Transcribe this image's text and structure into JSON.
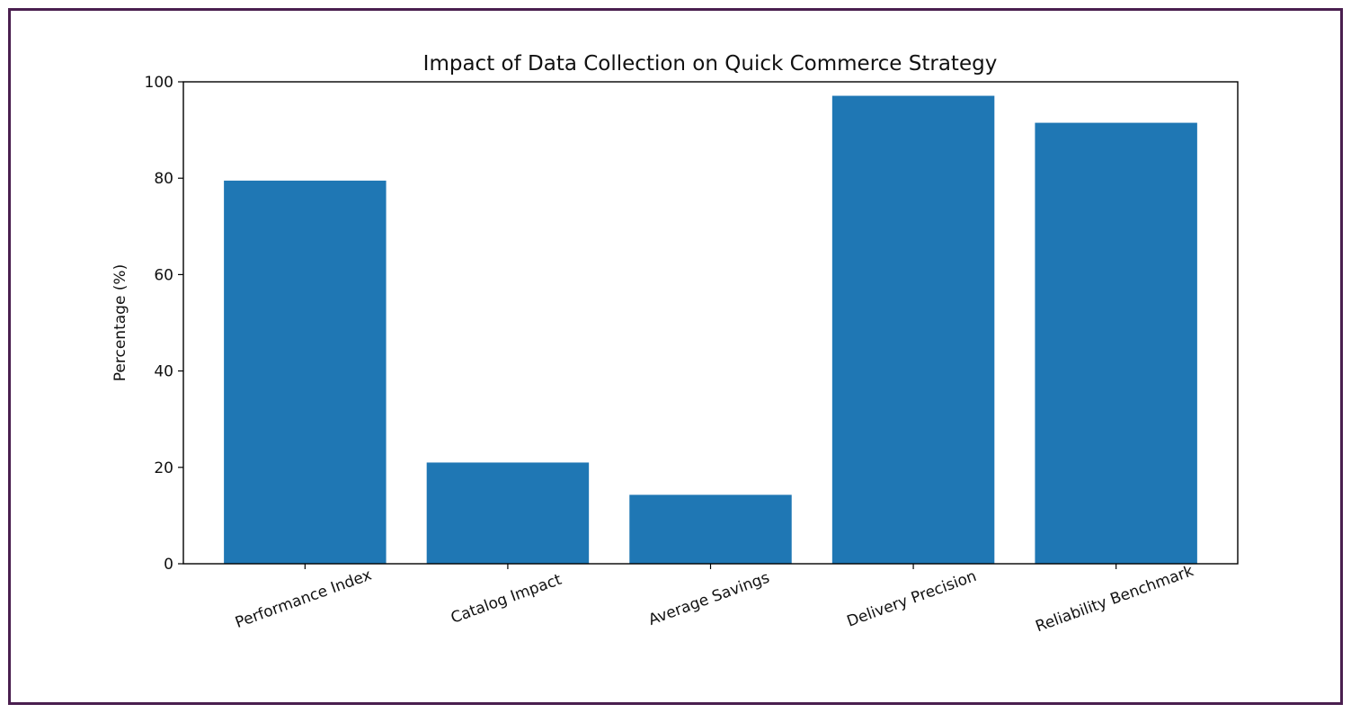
{
  "chart_data": {
    "type": "bar",
    "title": "Impact of Data Collection on Quick Commerce Strategy",
    "xlabel": "",
    "ylabel": "Percentage (%)",
    "categories": [
      "Performance Index",
      "Catalog Impact",
      "Average Savings",
      "Delivery Precision",
      "Reliability Benchmark"
    ],
    "values": [
      79.5,
      21.0,
      14.3,
      97.1,
      91.5
    ],
    "ylim": [
      0,
      100
    ],
    "yticks": [
      0,
      20,
      40,
      60,
      80,
      100
    ],
    "grid": false,
    "colors": {
      "bar": "#1f77b4",
      "axis": "#000000",
      "frame": "#4a1f4f"
    }
  }
}
